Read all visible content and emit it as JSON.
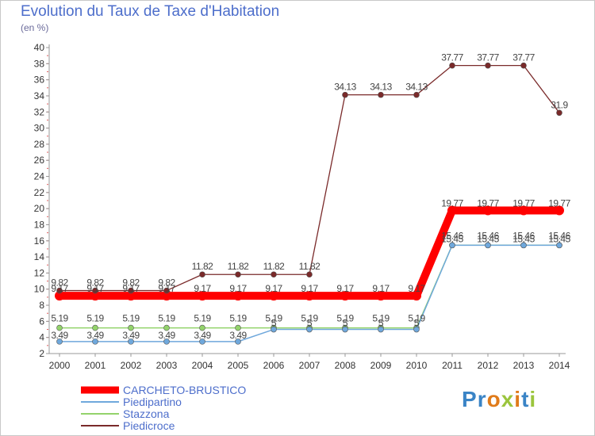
{
  "title": "Evolution du Taux de Taxe d'Habitation",
  "subtitle": "(en %)",
  "logo": "Proxiti",
  "chart_data": {
    "type": "line",
    "title": "Evolution du Taux de Taxe d'Habitation",
    "ylabel": "(en %)",
    "xlabel": "",
    "ylim": [
      2,
      40
    ],
    "yticks": [
      2,
      4,
      6,
      8,
      10,
      12,
      14,
      16,
      18,
      20,
      22,
      24,
      26,
      28,
      30,
      32,
      34,
      36,
      38,
      40
    ],
    "grid": false,
    "legend": "bottom-left",
    "x": [
      "2000",
      "2001",
      "2002",
      "2003",
      "2004",
      "2005",
      "2006",
      "2007",
      "2008",
      "2009",
      "2010",
      "2011",
      "2012",
      "2013",
      "2014"
    ],
    "series": [
      {
        "name": "CARCHETO-BRUSTICO",
        "color": "#ff0000",
        "values": [
          9.17,
          9.17,
          9.17,
          9.17,
          9.17,
          9.17,
          9.17,
          9.17,
          9.17,
          9.17,
          9.17,
          19.77,
          19.77,
          19.77,
          19.77
        ],
        "labels": [
          "9.17",
          "9.17",
          "9.17",
          "9.17",
          "9.17",
          "9.17",
          "9.17",
          "9.17",
          "9.17",
          "9.17",
          "9.17",
          "19.77",
          "19.77",
          "19.77",
          "19.77"
        ]
      },
      {
        "name": "Piedipartino",
        "color": "#6fa8dc",
        "values": [
          3.49,
          3.49,
          3.49,
          3.49,
          3.49,
          3.49,
          5,
          5,
          5,
          5,
          5,
          15.45,
          15.45,
          15.45,
          15.45
        ],
        "labels": [
          "3.49",
          "3.49",
          "3.49",
          "3.49",
          "3.49",
          "3.49",
          "5",
          "5",
          "5",
          "5",
          "5",
          "15.45",
          "15.45",
          "15.45",
          "15.45"
        ]
      },
      {
        "name": "Stazzona",
        "color": "#93d36b",
        "values": [
          5.19,
          5.19,
          5.19,
          5.19,
          5.19,
          5.19,
          5.19,
          5.19,
          5.19,
          5.19,
          5.19,
          15.46,
          15.46,
          15.46,
          15.46
        ],
        "labels": [
          "5.19",
          "5.19",
          "5.19",
          "5.19",
          "5.19",
          "5.19",
          "5.19",
          "5.19",
          "5.19",
          "5.19",
          "5.19",
          "15.46",
          "15.46",
          "15.46",
          "15.46"
        ]
      },
      {
        "name": "Piedicroce",
        "color": "#7a2a2a",
        "values": [
          9.82,
          9.82,
          9.82,
          9.82,
          11.82,
          11.82,
          11.82,
          11.82,
          34.13,
          34.13,
          34.13,
          37.77,
          37.77,
          37.77,
          31.9
        ],
        "labels": [
          "9.82",
          "9.82",
          "9.82",
          "9.82",
          "11.82",
          "11.82",
          "11.82",
          "11.82",
          "34.13",
          "34.13",
          "34.13",
          "37.77",
          "37.77",
          "37.77",
          "31.9"
        ]
      }
    ]
  }
}
